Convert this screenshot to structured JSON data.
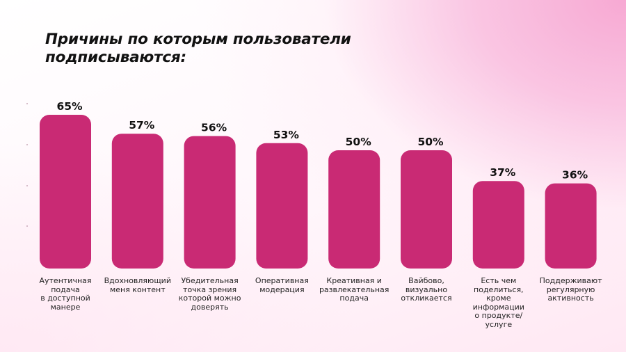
{
  "title": "Причины по которым пользователи\nподписываются:",
  "colors": {
    "bar": "#c92a74",
    "text": "#111111"
  },
  "chart_data": {
    "type": "bar",
    "title": "Причины по которым пользователи подписываются:",
    "categories": [
      "Аутентичная\nподача\nв доступной\nманере",
      "Вдохновляющий\nменя контент",
      "Убедительная\nточка зрения\nкоторой можно\nдоверять",
      "Оперативная\nмодерация",
      "Креативная и\nразвлекательная\nподача",
      "Вайбово,\nвизуально\nоткликается",
      "Есть чем\nподелиться,\nкроме\nинформации\nо продукте/\nуслуге",
      "Поддерживают\nрегулярную\nактивность"
    ],
    "values": [
      65,
      57,
      56,
      53,
      50,
      50,
      37,
      36
    ],
    "value_labels": [
      "65%",
      "57%",
      "56%",
      "53%",
      "50%",
      "50%",
      "37%",
      "36%"
    ],
    "ylabel": "",
    "xlabel": "",
    "ylim": [
      0,
      100
    ],
    "grid": false,
    "legend": "none"
  }
}
